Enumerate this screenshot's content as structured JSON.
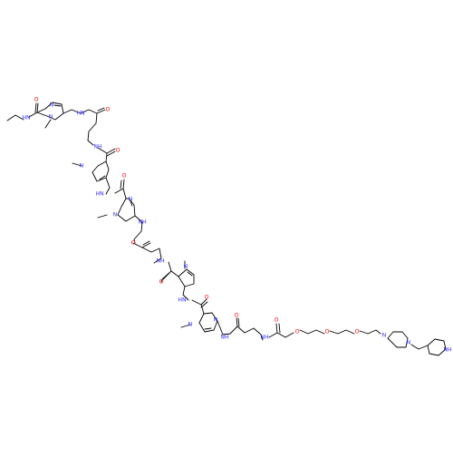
{
  "molecule": {
    "colors": {
      "bond": "#000000",
      "nitrogen": "#3333ff",
      "oxygen": "#ff0000",
      "background": "#ffffff"
    },
    "atom_labels": {
      "nh": "NH",
      "hn": "HN",
      "n": "N",
      "o": "O"
    }
  }
}
